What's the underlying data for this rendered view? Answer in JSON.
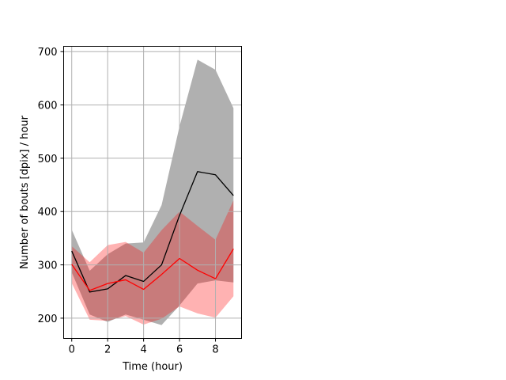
{
  "chart_data": {
    "type": "line",
    "xlabel": "Time (hour)",
    "ylabel": "Number of bouts [dpix]  / hour",
    "xlim": [
      -0.45,
      9.45
    ],
    "ylim": [
      162,
      710
    ],
    "xticks": [
      0,
      2,
      4,
      6,
      8
    ],
    "yticks": [
      200,
      300,
      400,
      500,
      600,
      700
    ],
    "grid": true,
    "x": [
      0,
      1,
      2,
      3,
      4,
      5,
      6,
      7,
      8,
      9
    ],
    "series": [
      {
        "color": "#000000",
        "band_color": "#b0b0b0",
        "values": [
          326,
          249,
          255,
          280,
          269,
          300,
          393,
          475,
          469,
          430
        ],
        "upper": [
          366,
          289,
          320,
          340,
          342,
          412,
          560,
          685,
          666,
          594
        ],
        "lower": [
          286,
          207,
          193,
          207,
          197,
          187,
          224,
          265,
          271,
          267
        ]
      },
      {
        "color": "#ff0000",
        "band_color": "rgba(255,0,0,0.30)",
        "values": [
          301,
          252,
          265,
          272,
          254,
          282,
          312,
          290,
          274,
          330
        ],
        "upper": [
          335,
          305,
          337,
          343,
          323,
          365,
          400,
          373,
          347,
          421
        ],
        "lower": [
          266,
          197,
          195,
          204,
          188,
          199,
          222,
          209,
          201,
          241
        ]
      }
    ]
  }
}
